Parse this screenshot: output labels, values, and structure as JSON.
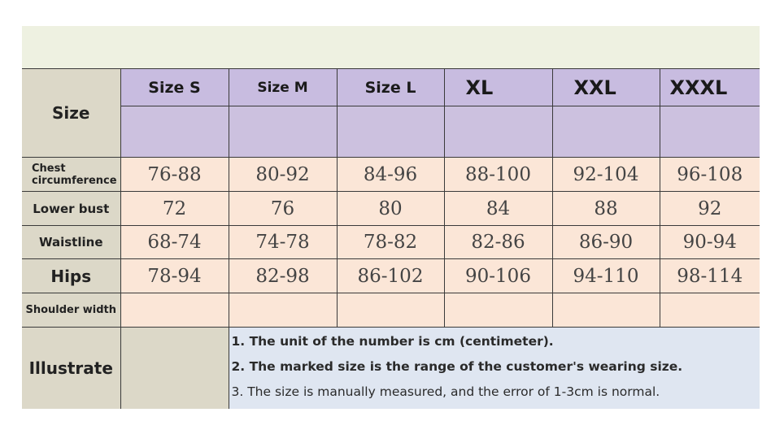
{
  "header_label": "Size",
  "sizes": [
    "Size S",
    "Size M",
    "Size L",
    "XL",
    "XXL",
    "XXXL"
  ],
  "rows": [
    {
      "label": "Chest circumference",
      "values": [
        "76-88",
        "80-92",
        "84-96",
        "88-100",
        "92-104",
        "96-108"
      ]
    },
    {
      "label": "Lower bust",
      "values": [
        "72",
        "76",
        "80",
        "84",
        "88",
        "92"
      ]
    },
    {
      "label": "Waistline",
      "values": [
        "68-74",
        "74-78",
        "78-82",
        "82-86",
        "86-90",
        "90-94"
      ]
    },
    {
      "label": "Hips",
      "values": [
        "78-94",
        "82-98",
        "86-102",
        "90-106",
        "94-110",
        "98-114"
      ]
    },
    {
      "label": "Shoulder width",
      "values": [
        "",
        "",
        "",
        "",
        "",
        ""
      ]
    }
  ],
  "illustrate": {
    "label": "Illustrate",
    "notes": [
      "1. The unit of the number is cm (centimeter).",
      "2. The marked size is the range of the customer's wearing size.",
      "3. The size is manually measured, and the error of 1-3cm is normal."
    ]
  },
  "colors": {
    "header": "#c8bce0",
    "values": "#fbe6d7",
    "labels": "#dcd8c8",
    "notes": "#dfe6f1",
    "band": "#eef1e1"
  }
}
